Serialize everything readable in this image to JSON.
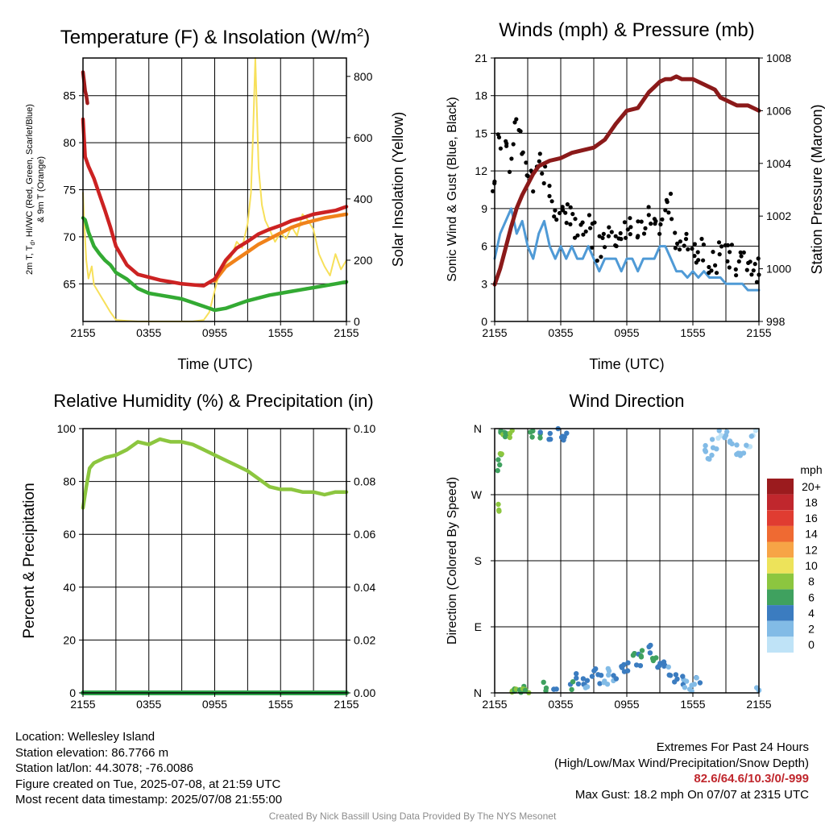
{
  "colors": {
    "temp": "#cc2222",
    "dewpoint": "#33aa33",
    "heat_index": "#e8861a",
    "temp_9m": "#f0821a",
    "insolation": "#f7e05a",
    "wind": "#4f9ad6",
    "gust": "#000000",
    "pressure": "#8b1a1a",
    "rh": "#8cc63f",
    "precip": "#2ea44a"
  },
  "panels": {
    "temperature": {
      "title": "Temperature (F) & Insolation (W/m",
      "title_sup": "2",
      "title_end": ")",
      "ylabel_left_line1": "2m T, T",
      "ylabel_left_sub": "d",
      "ylabel_left_rest": ", HI/WC (Red, Green, Scarlet/Blue)",
      "ylabel_left_line2": "& 9m T (Orange)",
      "ylabel_right": "Solar Insolation (Yellow)",
      "xlabel": "Time (UTC)"
    },
    "winds": {
      "title": "Winds (mph) & Pressure (mb)",
      "ylabel_left": "Sonic Wind & Gust (Blue, Black)",
      "ylabel_right": "Station Pressure (Maroon)",
      "xlabel": "Time (UTC)"
    },
    "humidity": {
      "title": "Relative Humidity (%) & Precipitation (in)",
      "ylabel_left": "Percent & Precipitation"
    },
    "direction": {
      "title": "Wind Direction",
      "ylabel_left": "Direction (Colored By Speed)",
      "colorbar": {
        "title": "mph",
        "labels": [
          "20+",
          "18",
          "16",
          "14",
          "12",
          "10",
          "8",
          "6",
          "4",
          "2",
          "0"
        ],
        "colors": [
          "#9b1b1e",
          "#c0272d",
          "#e03c31",
          "#ef6a32",
          "#f7a446",
          "#ede35a",
          "#8cc63f",
          "#3fa15f",
          "#3b7cc0",
          "#82bbe6",
          "#bfe3f7"
        ]
      }
    }
  },
  "chart_data": [
    {
      "type": "line",
      "title": "Temperature (F) & Insolation (W/m2)",
      "xlabel": "Time (UTC)",
      "ylabel": "2m T, Td, HI/WC (Red, Green, Scarlet/Blue) & 9m T (Orange)",
      "y2label": "Solar Insolation (Yellow)",
      "x_ticks": [
        "2155",
        "0355",
        "0955",
        "1555",
        "2155"
      ],
      "x_range_hours": [
        0,
        24
      ],
      "ylim": [
        61,
        89
      ],
      "y_ticks": [
        65,
        70,
        75,
        80,
        85
      ],
      "y2lim": [
        0,
        860
      ],
      "y2_ticks": [
        0,
        200,
        400,
        600,
        800
      ],
      "grid": true,
      "series": [
        {
          "name": "2m T",
          "axis": "left",
          "x": [
            0,
            0.2,
            0.5,
            1,
            1.5,
            2,
            2.5,
            3,
            4,
            5,
            6,
            7,
            8,
            9,
            10,
            11,
            12,
            13,
            14,
            15,
            16,
            17,
            18,
            19,
            20,
            21,
            22,
            23,
            24
          ],
          "y": [
            82.5,
            78.5,
            77.5,
            76.2,
            74.5,
            72.8,
            71,
            69,
            67,
            66,
            65.7,
            65.4,
            65.2,
            65,
            64.9,
            64.8,
            65.5,
            67.5,
            68.8,
            69.5,
            70.3,
            70.8,
            71.2,
            71.7,
            72,
            72.4,
            72.6,
            72.8,
            73.2
          ]
        },
        {
          "name": "HI/WC",
          "axis": "left",
          "x": [
            0,
            0.1,
            0.2,
            0.3,
            0.4
          ],
          "y": [
            87.5,
            86.5,
            85.5,
            85,
            84.2
          ]
        },
        {
          "name": "Td",
          "axis": "left",
          "x": [
            0,
            0.2,
            0.5,
            1,
            1.5,
            2,
            2.5,
            3,
            4,
            5,
            6,
            7,
            8,
            9,
            10,
            11,
            12,
            13,
            14,
            15,
            16,
            17,
            18,
            19,
            20,
            21,
            22,
            23,
            24
          ],
          "y": [
            72,
            71.8,
            70.5,
            69,
            68.2,
            67.5,
            67,
            66.2,
            65.5,
            64.5,
            64,
            63.8,
            63.6,
            63.4,
            63,
            62.6,
            62.2,
            62.4,
            62.8,
            63.2,
            63.5,
            63.8,
            64,
            64.2,
            64.4,
            64.6,
            64.8,
            65,
            65.2
          ]
        },
        {
          "name": "9m T",
          "axis": "left",
          "x": [
            12,
            13,
            14,
            15,
            16,
            17,
            18,
            19,
            20,
            21,
            22,
            23,
            24
          ],
          "y": [
            65.3,
            66.8,
            67.6,
            68.4,
            69.2,
            69.8,
            70.4,
            71,
            71.4,
            71.7,
            72,
            72.2,
            72.4
          ]
        },
        {
          "name": "Insolation",
          "axis": "right",
          "x": [
            0,
            0.1,
            0.3,
            0.5,
            0.8,
            1,
            1.5,
            2,
            2.5,
            3,
            4,
            5,
            6,
            7,
            8,
            9,
            10,
            11,
            11.5,
            12,
            12.5,
            13,
            13.5,
            14,
            14.5,
            15,
            15.3,
            15.5,
            15.7,
            16,
            16.3,
            16.6,
            17,
            17.5,
            18,
            18.5,
            19,
            19.5,
            20,
            20.5,
            21,
            21.5,
            22,
            22.5,
            23,
            23.5,
            24
          ],
          "y": [
            420,
            330,
            200,
            140,
            180,
            120,
            90,
            60,
            30,
            5,
            2,
            0,
            0,
            0,
            0,
            0,
            0,
            5,
            30,
            100,
            170,
            190,
            210,
            260,
            240,
            320,
            420,
            620,
            860,
            500,
            380,
            330,
            300,
            260,
            290,
            270,
            310,
            280,
            350,
            330,
            300,
            220,
            180,
            150,
            220,
            170,
            200
          ]
        }
      ]
    },
    {
      "type": "scatter",
      "title": "Winds (mph) & Pressure (mb)",
      "xlabel": "Time (UTC)",
      "ylabel": "Sonic Wind & Gust (Blue, Black)",
      "y2label": "Station Pressure (Maroon)",
      "x_ticks": [
        "2155",
        "0355",
        "0955",
        "1555",
        "2155"
      ],
      "x_range_hours": [
        0,
        24
      ],
      "ylim": [
        0,
        21
      ],
      "y_ticks": [
        0,
        3,
        6,
        9,
        12,
        15,
        18,
        21
      ],
      "y2lim": [
        998,
        1008
      ],
      "y2_ticks": [
        998,
        1000,
        1002,
        1004,
        1006,
        1008
      ],
      "grid": true,
      "series": [
        {
          "name": "Sonic Wind",
          "axis": "left",
          "x": [
            0,
            0.5,
            1,
            1.5,
            2,
            2.5,
            3,
            3.5,
            4,
            4.5,
            5,
            5.5,
            6,
            6.5,
            7,
            7.5,
            8,
            8.5,
            9,
            9.5,
            10,
            10.5,
            11,
            11.5,
            12,
            12.5,
            13,
            13.5,
            14,
            14.5,
            15,
            15.5,
            16,
            16.5,
            17,
            17.5,
            18,
            18.5,
            19,
            19.5,
            20,
            20.5,
            21,
            21.5,
            22,
            22.5,
            23,
            23.5,
            24
          ],
          "y": [
            5,
            7,
            8,
            9,
            7,
            8,
            6,
            5,
            7,
            8,
            6,
            5,
            6,
            5,
            6,
            5,
            5,
            6,
            5,
            4,
            5,
            5,
            5,
            4,
            5,
            5,
            4,
            5,
            5,
            5,
            6,
            6,
            5,
            4,
            4,
            3.5,
            4,
            3.5,
            4,
            3.5,
            3.5,
            3.5,
            3,
            3,
            3,
            3,
            2.5,
            2.5,
            2.5
          ]
        },
        {
          "name": "Gust",
          "axis": "left",
          "x": [
            0,
            0.5,
            1,
            1.5,
            2,
            2.5,
            3,
            3.5,
            4,
            4.5,
            5,
            5.5,
            6,
            6.5,
            7,
            7.5,
            8,
            8.5,
            9,
            9.5,
            10,
            10.5,
            11,
            11.5,
            12,
            12.5,
            13,
            13.5,
            14,
            14.5,
            15,
            15.5,
            16,
            16.5,
            17,
            17.5,
            18,
            18.5,
            19,
            19.5,
            20,
            20.5,
            21,
            21.5,
            22,
            22.5,
            23,
            23.5,
            24
          ],
          "y": [
            11,
            14,
            15,
            13,
            16,
            14,
            12,
            11,
            13,
            12,
            10,
            9,
            8,
            9,
            8,
            7,
            7,
            8,
            7,
            6,
            7,
            8,
            7,
            6,
            7,
            8,
            7,
            7,
            8,
            7,
            8,
            9,
            9,
            7,
            6,
            6,
            6,
            5.5,
            6,
            5,
            5,
            6,
            5,
            5,
            4.5,
            5,
            4.5,
            4,
            4
          ]
        },
        {
          "name": "Station Pressure",
          "axis": "right",
          "x": [
            0,
            0.5,
            1,
            1.5,
            2,
            2.5,
            3,
            3.5,
            4,
            5,
            6,
            7,
            8,
            9,
            10,
            11,
            12,
            13,
            14,
            14.5,
            15,
            15.5,
            16,
            16.5,
            17,
            18,
            19,
            20,
            20.5,
            21,
            22,
            23,
            23.5,
            24
          ],
          "y": [
            999.4,
            1000,
            1000.8,
            1001.6,
            1002.3,
            1002.8,
            1003.2,
            1003.6,
            1003.9,
            1004.1,
            1004.2,
            1004.4,
            1004.5,
            1004.6,
            1004.9,
            1005.5,
            1006.0,
            1006.1,
            1006.7,
            1006.9,
            1007.1,
            1007.2,
            1007.2,
            1007.3,
            1007.2,
            1007.2,
            1007.0,
            1006.8,
            1006.5,
            1006.4,
            1006.2,
            1006.2,
            1006.1,
            1006.0
          ]
        }
      ]
    },
    {
      "type": "line",
      "title": "Relative Humidity (%) & Precipitation (in)",
      "ylabel": "Percent & Precipitation",
      "x_ticks": [
        "2155",
        "0355",
        "0955",
        "1555",
        "2155"
      ],
      "x_range_hours": [
        0,
        24
      ],
      "ylim": [
        0,
        100
      ],
      "y_ticks": [
        0,
        20,
        40,
        60,
        80,
        100
      ],
      "y2lim": [
        0,
        0.1
      ],
      "y2_ticks": [
        "0.00",
        "0.02",
        "0.04",
        "0.06",
        "0.08",
        "0.10"
      ],
      "grid": true,
      "series": [
        {
          "name": "RH",
          "axis": "left",
          "x": [
            0,
            0.3,
            0.6,
            1,
            1.5,
            2,
            3,
            4,
            5,
            6,
            7,
            8,
            9,
            10,
            11,
            12,
            13,
            14,
            15,
            16,
            17,
            18,
            19,
            20,
            21,
            22,
            23,
            24
          ],
          "y": [
            70,
            78,
            85,
            87,
            88,
            89,
            90,
            92,
            95,
            94,
            96,
            95,
            95,
            94,
            92,
            90,
            88,
            86,
            84,
            81,
            78,
            77,
            77,
            76,
            76,
            75,
            76,
            76
          ]
        },
        {
          "name": "Precipitation",
          "axis": "right",
          "x": [
            0,
            24
          ],
          "y": [
            0,
            0
          ]
        }
      ]
    },
    {
      "type": "scatter",
      "title": "Wind Direction",
      "ylabel": "Direction (Colored By Speed)",
      "x_ticks": [
        "2155",
        "0355",
        "0955",
        "1555",
        "2155"
      ],
      "x_range_hours": [
        0,
        24
      ],
      "y_ticks": [
        "N",
        "E",
        "S",
        "W",
        "N"
      ],
      "y_degrees": [
        0,
        90,
        180,
        270,
        360
      ],
      "grid": true,
      "colorbar_unit": "mph",
      "series": [
        {
          "name": "Direction",
          "x": [
            0.2,
            0.4,
            0.6,
            0.8,
            1,
            1.2,
            1.5,
            1.8,
            2,
            2.3,
            2.6,
            3,
            3.5,
            4,
            4.5,
            5,
            5.5,
            6,
            6.5,
            7,
            7.5,
            8,
            8.5,
            9,
            9.5,
            10,
            10.5,
            11,
            11.5,
            12,
            12.5,
            13,
            13.5,
            14,
            14.5,
            15,
            15.5,
            16,
            16.5,
            17,
            17.5,
            18,
            18.5,
            19,
            19.5,
            20,
            20.5,
            21,
            21.5,
            22,
            22.5,
            23,
            23.5,
            24
          ],
          "y": [
            250,
            310,
            330,
            355,
            358,
            352,
            354,
            5,
            8,
            3,
            10,
            5,
            356,
            354,
            8,
            352,
            3,
            356,
            352,
            12,
            20,
            15,
            10,
            25,
            20,
            18,
            30,
            22,
            40,
            35,
            50,
            45,
            55,
            60,
            45,
            40,
            35,
            30,
            20,
            15,
            10,
            8,
            15,
            330,
            320,
            340,
            350,
            355,
            345,
            330,
            320,
            340,
            350,
            5
          ],
          "speed": [
            8,
            6,
            7,
            6,
            7,
            6,
            8,
            9,
            7,
            6,
            7,
            7,
            6,
            5,
            6,
            4,
            4,
            4,
            4,
            5,
            4,
            4,
            3,
            4,
            3,
            3,
            2,
            3,
            4,
            4,
            5,
            4,
            5,
            5,
            6,
            4,
            4,
            3,
            3,
            3,
            2,
            2,
            3,
            2,
            2,
            2,
            1,
            2,
            2,
            2,
            2,
            1,
            1,
            2
          ]
        }
      ]
    }
  ],
  "info_left": {
    "location": "Location: Wellesley Island",
    "elevation": "Station elevation: 86.7766 m",
    "latlon": "Station lat/lon: 44.3078; -76.0086",
    "created": "Figure created on Tue, 2025-07-08, at 21:59 UTC",
    "recent": "Most recent data timestamp: 2025/07/08 21:55:00"
  },
  "info_right": {
    "heading": "Extremes For Past 24 Hours",
    "subheading": "(High/Low/Max Wind/Precipitation/Snow Depth)",
    "values": "82.6/64.6/10.3/0/-999",
    "max_gust": "Max Gust: 18.2 mph On 07/07 at 2315 UTC"
  },
  "credit": "Created By Nick Bassill Using Data Provided By The NYS Mesonet"
}
